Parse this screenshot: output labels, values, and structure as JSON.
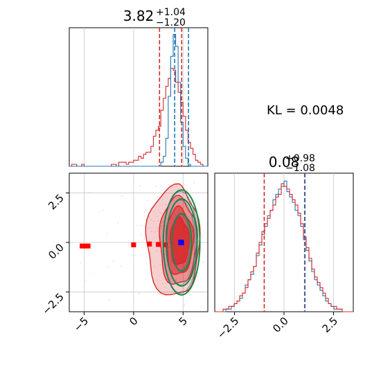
{
  "colors": {
    "red": "#d62728",
    "blue": "#1f77b4",
    "green": "#138a36",
    "point_blue": "#0000ff",
    "point_red": "#ff0000",
    "grid": "#c8c8c8"
  },
  "kl_label": "KL = 0.0048",
  "chart_data": [
    {
      "type": "histogram",
      "panel": "top-left",
      "title_value": "3.82",
      "title_plus": "+1.04",
      "title_minus": "−1.20",
      "xlim": [
        -6.5,
        7.5
      ],
      "grid": true,
      "bin_edges_start": -6.5,
      "bin_width": 0.25,
      "series": [
        {
          "color": "red",
          "values": [
            0,
            1,
            1,
            0,
            0,
            1,
            0,
            0,
            0,
            0,
            0,
            0,
            0,
            0,
            0,
            0,
            0,
            1,
            1,
            0,
            2,
            2,
            2,
            1,
            2,
            2,
            3,
            3,
            5,
            4,
            6,
            7,
            7,
            10,
            15,
            18,
            20,
            28,
            34,
            40,
            44,
            49,
            48,
            42,
            37,
            32,
            25,
            18,
            12,
            9,
            6,
            3,
            2,
            1,
            0,
            0
          ],
          "quantile_lines": [
            2.62,
            4.86
          ]
        },
        {
          "color": "blue",
          "values": [
            0,
            0,
            0,
            0,
            0,
            0,
            0,
            0,
            0,
            0,
            0,
            0,
            0,
            0,
            0,
            0,
            0,
            0,
            0,
            0,
            0,
            0,
            0,
            0,
            0,
            0,
            0,
            0,
            0,
            0,
            0,
            0,
            0,
            0,
            0,
            0,
            0,
            2,
            5,
            14,
            35,
            55,
            66,
            60,
            42,
            22,
            10,
            4,
            1,
            0,
            0,
            0,
            0,
            0,
            0,
            0
          ],
          "quantile_lines": [
            4.15,
            5.55
          ]
        }
      ]
    },
    {
      "type": "scatter",
      "panel": "bottom-left",
      "xlim": [
        -6.5,
        7.5
      ],
      "ylim": [
        -3.5,
        3.5
      ],
      "xticks": [
        "−5",
        "0",
        "5"
      ],
      "xtick_values": [
        -5,
        0,
        5
      ],
      "yticks": [
        "2.5",
        "0.0",
        "−2.5"
      ],
      "ytick_values": [
        2.5,
        0.0,
        -2.5
      ],
      "grid": true,
      "red_markers": [
        [
          -5.2,
          -0.18
        ],
        [
          -4.9,
          -0.18
        ],
        [
          -4.6,
          -0.18
        ],
        [
          0.0,
          -0.12
        ],
        [
          1.6,
          -0.08
        ],
        [
          2.5,
          -0.1
        ],
        [
          3.2,
          -0.12
        ]
      ],
      "blue_marker": [
        4.8,
        0.0
      ],
      "red_contours_center": [
        4.6,
        0.05
      ],
      "green_ellipses": [
        {
          "cx": 4.85,
          "cy": 0.0,
          "rx": 1.0,
          "ry": 1.45
        },
        {
          "cx": 4.85,
          "cy": 0.0,
          "rx": 1.55,
          "ry": 2.2
        },
        {
          "cx": 4.85,
          "cy": 0.0,
          "rx": 1.85,
          "ry": 2.65
        }
      ]
    },
    {
      "type": "histogram",
      "panel": "bottom-right",
      "title_value": "0.08",
      "title_plus": "+0.98",
      "title_minus": "−1.08",
      "xlim": [
        -3.5,
        3.5
      ],
      "xticks": [
        "−2.5",
        "0.0",
        "2.5"
      ],
      "xtick_values": [
        -2.5,
        0.0,
        2.5
      ],
      "grid": true,
      "bin_edges_start": -3.5,
      "bin_width": 0.14,
      "series": [
        {
          "color": "red",
          "values": [
            0,
            0,
            0,
            1,
            1,
            2,
            2,
            3,
            4,
            6,
            7,
            9,
            12,
            15,
            17,
            22,
            26,
            30,
            33,
            35,
            38,
            40,
            43,
            44,
            48,
            47,
            46,
            44,
            42,
            40,
            37,
            33,
            28,
            24,
            20,
            16,
            13,
            11,
            9,
            7,
            5,
            3,
            2,
            2,
            1,
            1,
            0,
            0,
            0,
            0
          ],
          "quantile_lines": [
            -1.0,
            1.06
          ]
        },
        {
          "color": "blue",
          "values": [
            0,
            0,
            0,
            0,
            1,
            1,
            2,
            3,
            4,
            5,
            7,
            10,
            12,
            14,
            17,
            21,
            25,
            29,
            32,
            36,
            38,
            42,
            44,
            46,
            47,
            49,
            45,
            43,
            41,
            38,
            36,
            32,
            27,
            23,
            19,
            15,
            12,
            10,
            8,
            6,
            4,
            3,
            2,
            1,
            1,
            1,
            0,
            0,
            0,
            0
          ],
          "quantile_lines": [
            1.04
          ]
        }
      ]
    }
  ]
}
